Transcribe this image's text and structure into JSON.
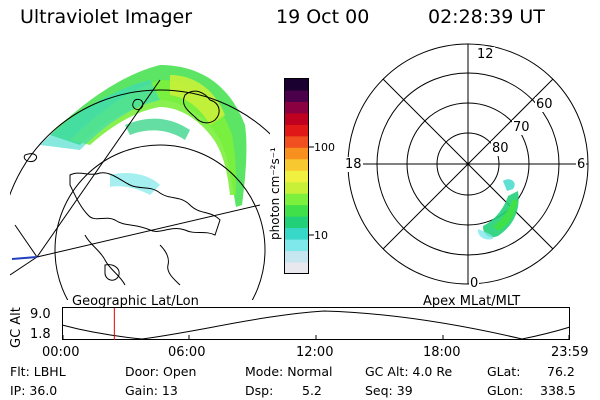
{
  "header": {
    "instrument": "Ultraviolet Imager",
    "date": "19 Oct 00",
    "time": "02:28:39 UT"
  },
  "geo_map": {
    "label": "Geographic Lat/Lon"
  },
  "colorbar": {
    "unit_label": "photon cm⁻²s⁻¹",
    "ticks": [
      "100",
      "10"
    ],
    "colors": [
      "#e8e8ee",
      "#c6e6f0",
      "#7fe8ea",
      "#37d8c8",
      "#22d07a",
      "#3fe04a",
      "#7cf03c",
      "#c8f038",
      "#f0f040",
      "#f8c830",
      "#f89020",
      "#f05020",
      "#e01818",
      "#c00020",
      "#8a0040",
      "#4a004a",
      "#1a0030"
    ]
  },
  "polar_plot": {
    "label": "Apex MLat/MLT",
    "mlt_labels": {
      "top": "12",
      "left": "18",
      "right": "6",
      "bottom": "0"
    },
    "lat_labels": [
      "60",
      "70",
      "80"
    ]
  },
  "timeline": {
    "axis_label": "GC Alt",
    "y_max": "9.0",
    "y_min": "1.8",
    "x_ticks": [
      "00:00",
      "06:00",
      "12:00",
      "18:00",
      "23:59"
    ],
    "current_time_fraction": 0.103,
    "marker_color": "#e00000"
  },
  "info": {
    "row1": {
      "flt": "Flt: LBHL",
      "door": "Door: Open",
      "mode": "Mode: Normal",
      "gc_alt": "GC Alt: 4.0 Re",
      "glat": "GLat:",
      "glat_val": "76.2"
    },
    "row2": {
      "ip": "IP: 36.0",
      "gain": "Gain: 13",
      "dsp": "Dsp:",
      "dsp_val": "5.2",
      "seq": "Seq: 39",
      "glon": "GLon:",
      "glon_val": "338.5"
    }
  }
}
